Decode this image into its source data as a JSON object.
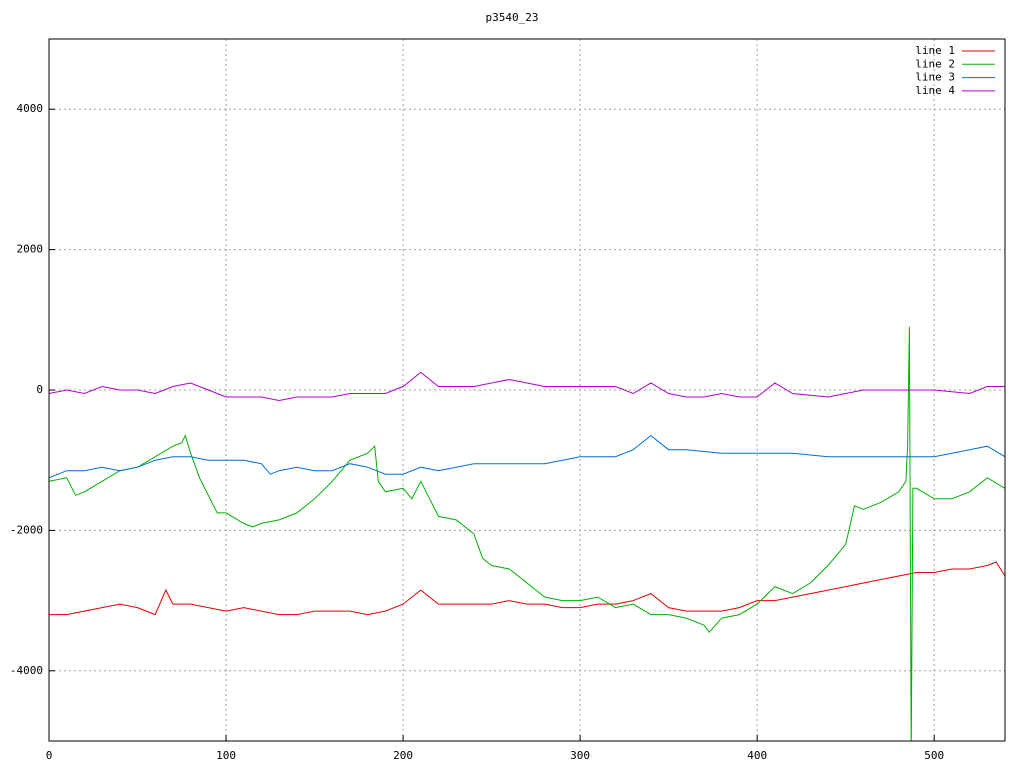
{
  "chart_data": {
    "type": "line",
    "title": "p3540_23",
    "xlim": [
      0,
      540
    ],
    "ylim": [
      -5000,
      5000
    ],
    "xticks": [
      0,
      100,
      200,
      300,
      400,
      500
    ],
    "yticks": [
      -4000,
      -2000,
      0,
      2000,
      4000
    ],
    "grid": true,
    "legend": "top-right",
    "series": [
      {
        "name": "line 1",
        "color": "#e00000",
        "x": [
          0,
          10,
          20,
          30,
          40,
          50,
          60,
          66,
          70,
          80,
          90,
          100,
          110,
          120,
          130,
          140,
          150,
          160,
          170,
          180,
          190,
          200,
          210,
          220,
          230,
          240,
          250,
          260,
          270,
          280,
          290,
          300,
          310,
          320,
          330,
          340,
          350,
          360,
          370,
          380,
          390,
          400,
          410,
          420,
          430,
          440,
          450,
          460,
          470,
          480,
          490,
          500,
          510,
          520,
          530,
          535,
          540
        ],
        "values": [
          -3200,
          -3200,
          -3150,
          -3100,
          -3050,
          -3100,
          -3200,
          -2850,
          -3050,
          -3050,
          -3100,
          -3150,
          -3100,
          -3150,
          -3200,
          -3200,
          -3150,
          -3150,
          -3150,
          -3200,
          -3150,
          -3050,
          -2850,
          -3050,
          -3050,
          -3050,
          -3050,
          -3000,
          -3050,
          -3050,
          -3100,
          -3100,
          -3050,
          -3050,
          -3000,
          -2900,
          -3100,
          -3150,
          -3150,
          -3150,
          -3100,
          -3000,
          -3000,
          -2950,
          -2900,
          -2850,
          -2800,
          -2750,
          -2700,
          -2650,
          -2600,
          -2600,
          -2550,
          -2550,
          -2500,
          -2450,
          -2650
        ]
      },
      {
        "name": "line 2",
        "color": "#00b000",
        "x": [
          0,
          10,
          15,
          20,
          30,
          40,
          50,
          60,
          70,
          75,
          77,
          80,
          85,
          90,
          95,
          100,
          110,
          115,
          120,
          130,
          140,
          150,
          160,
          170,
          180,
          184,
          186,
          190,
          200,
          205,
          210,
          215,
          220,
          230,
          240,
          245,
          250,
          260,
          270,
          280,
          290,
          300,
          310,
          320,
          330,
          340,
          350,
          360,
          370,
          373,
          380,
          390,
          400,
          410,
          420,
          430,
          440,
          450,
          455,
          460,
          470,
          480,
          484,
          485,
          486,
          487,
          488,
          490,
          500,
          510,
          520,
          530,
          540
        ],
        "values": [
          -1300,
          -1250,
          -1500,
          -1450,
          -1300,
          -1150,
          -1100,
          -950,
          -800,
          -750,
          -650,
          -900,
          -1250,
          -1500,
          -1750,
          -1750,
          -1900,
          -1950,
          -1900,
          -1850,
          -1750,
          -1550,
          -1300,
          -1000,
          -900,
          -800,
          -1300,
          -1450,
          -1400,
          -1550,
          -1300,
          -1550,
          -1800,
          -1850,
          -2050,
          -2400,
          -2500,
          -2550,
          -2750,
          -2950,
          -3000,
          -3000,
          -2950,
          -3100,
          -3050,
          -3200,
          -3200,
          -3250,
          -3350,
          -3450,
          -3250,
          -3200,
          -3050,
          -2800,
          -2900,
          -2750,
          -2500,
          -2200,
          -1650,
          -1700,
          -1600,
          -1450,
          -1300,
          -800,
          900,
          -5200,
          -1400,
          -1400,
          -1550,
          -1550,
          -1450,
          -1250,
          -1400
        ]
      },
      {
        "name": "line 3",
        "color": "#0070d0",
        "x": [
          0,
          10,
          20,
          30,
          40,
          50,
          60,
          70,
          80,
          90,
          100,
          110,
          120,
          125,
          130,
          140,
          150,
          160,
          170,
          180,
          190,
          200,
          210,
          220,
          240,
          260,
          280,
          300,
          320,
          330,
          340,
          350,
          360,
          380,
          400,
          420,
          440,
          460,
          480,
          490,
          500,
          520,
          530,
          540
        ],
        "values": [
          -1250,
          -1150,
          -1150,
          -1100,
          -1150,
          -1100,
          -1000,
          -950,
          -950,
          -1000,
          -1000,
          -1000,
          -1050,
          -1200,
          -1150,
          -1100,
          -1150,
          -1150,
          -1050,
          -1100,
          -1200,
          -1200,
          -1100,
          -1150,
          -1050,
          -1050,
          -1050,
          -950,
          -950,
          -850,
          -650,
          -850,
          -850,
          -900,
          -900,
          -900,
          -950,
          -950,
          -950,
          -950,
          -950,
          -850,
          -800,
          -950
        ]
      },
      {
        "name": "line 4",
        "color": "#b000d0",
        "x": [
          0,
          10,
          20,
          30,
          40,
          50,
          60,
          70,
          80,
          90,
          100,
          110,
          120,
          130,
          140,
          150,
          160,
          170,
          180,
          190,
          200,
          210,
          220,
          240,
          260,
          280,
          300,
          320,
          330,
          340,
          350,
          360,
          370,
          380,
          390,
          400,
          410,
          420,
          440,
          460,
          480,
          500,
          520,
          530,
          540
        ],
        "values": [
          -50,
          0,
          -50,
          50,
          0,
          0,
          -50,
          50,
          100,
          0,
          -100,
          -100,
          -100,
          -150,
          -100,
          -100,
          -100,
          -50,
          -50,
          -50,
          50,
          250,
          50,
          50,
          150,
          50,
          50,
          50,
          -50,
          100,
          -50,
          -100,
          -100,
          -50,
          -100,
          -100,
          100,
          -50,
          -100,
          0,
          0,
          0,
          -50,
          50,
          50
        ]
      }
    ]
  }
}
